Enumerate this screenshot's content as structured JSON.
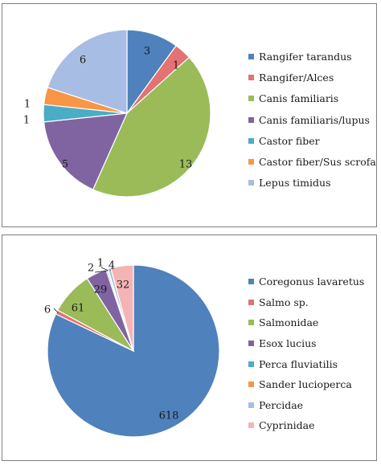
{
  "chart_data": [
    {
      "type": "pie",
      "title": "",
      "legend_position": "right",
      "series": [
        {
          "name": "Rangifer tarandus",
          "value": 3,
          "color": "#4f81bd"
        },
        {
          "name": "Rangifer/Alces",
          "value": 1,
          "color": "#e37272"
        },
        {
          "name": "Canis familiaris",
          "value": 13,
          "color": "#9bbb59"
        },
        {
          "name": "Canis familiaris/lupus",
          "value": 5,
          "color": "#8064a2"
        },
        {
          "name": "Castor fiber",
          "value": 1,
          "color": "#4bacc6"
        },
        {
          "name": "Castor fiber/Sus scrofa",
          "value": 1,
          "color": "#f79646"
        },
        {
          "name": "Lepus timidus",
          "value": 6,
          "color": "#a7bde3"
        }
      ],
      "data_labels": [
        "3",
        "1",
        "13",
        "5",
        "1",
        "1",
        "6"
      ]
    },
    {
      "type": "pie",
      "title": "",
      "legend_position": "right",
      "series": [
        {
          "name": "Coregonus lavaretus",
          "value": 618,
          "color": "#4f81bd"
        },
        {
          "name": "Salmo sp.",
          "value": 6,
          "color": "#e37272"
        },
        {
          "name": "Salmonidae",
          "value": 61,
          "color": "#9bbb59"
        },
        {
          "name": "Esox lucius",
          "value": 29,
          "color": "#8064a2"
        },
        {
          "name": "Perca fluviatilis",
          "value": 2,
          "color": "#4bacc6"
        },
        {
          "name": "Sander lucioperca",
          "value": 1,
          "color": "#f79646"
        },
        {
          "name": "Percidae",
          "value": 4,
          "color": "#a7bde3"
        },
        {
          "name": "Cyprinidae",
          "value": 32,
          "color": "#f4b4b4"
        }
      ],
      "data_labels": [
        "618",
        "6",
        "61",
        "29",
        "2",
        "1",
        "4",
        "32"
      ]
    }
  ]
}
